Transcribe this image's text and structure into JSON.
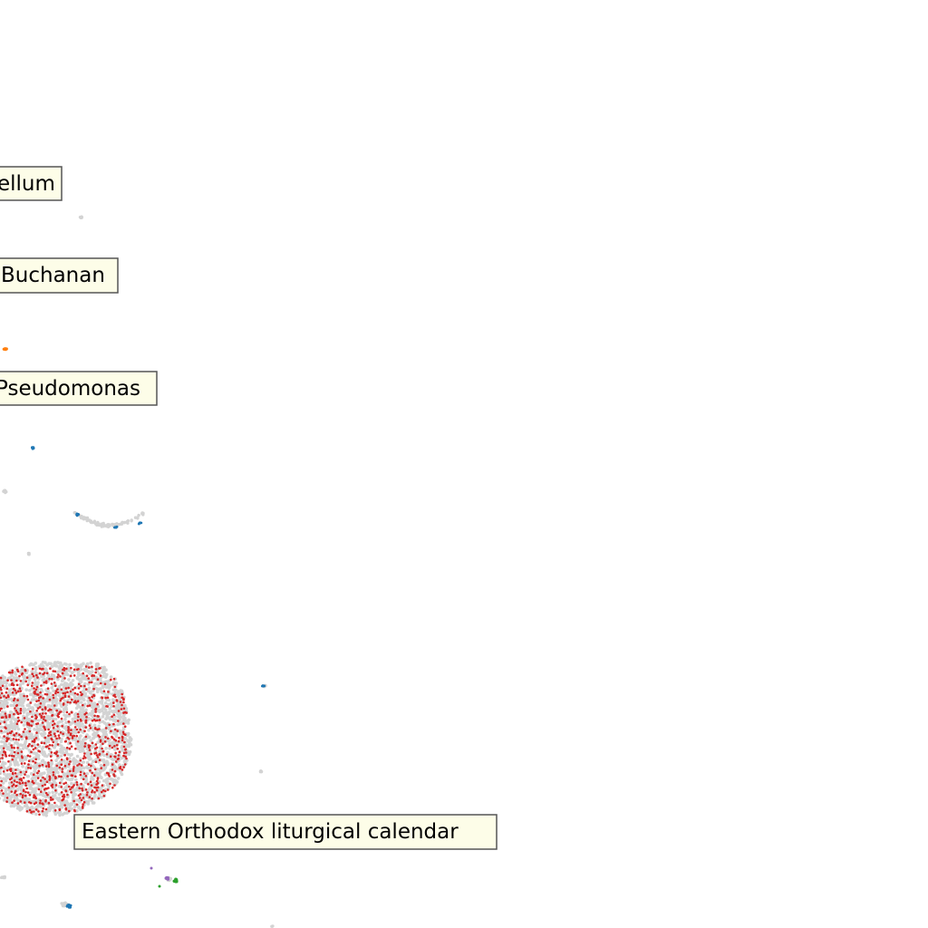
{
  "chart_data": {
    "type": "scatter",
    "title": "",
    "xlabel": "",
    "ylabel": "",
    "grid": false,
    "legend": "none",
    "colors": {
      "background_points": "#d3d3d3",
      "red": "#d62728",
      "orange": "#ff7f0e",
      "light_orange": "#ffbb78",
      "blue": "#1f77b4",
      "green": "#2ca02c",
      "purple": "#9467bd",
      "label_fill": "#fdfde8",
      "label_border": "#555555"
    },
    "annotations": [
      {
        "id": "ellum",
        "text": "ellum"
      },
      {
        "id": "buchanan",
        "text": "Buchanan"
      },
      {
        "id": "pseudomonas",
        "text": "Pseudomonas"
      },
      {
        "id": "orthodox",
        "text": "Eastern Orthodox liturgical calendar"
      }
    ]
  }
}
